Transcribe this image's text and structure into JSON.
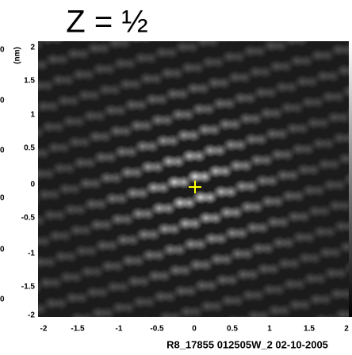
{
  "title": "Z = ½",
  "y_axis_label": "(nm)",
  "y_ticks": [
    "2",
    "1.5",
    "1",
    "0.5",
    "0",
    "-0.5",
    "-1",
    "-1.5",
    "-2"
  ],
  "x_ticks": [
    "-2",
    "-1.5",
    "-1",
    "-0.5",
    "0",
    "0.5",
    "1",
    "1.5",
    "2"
  ],
  "edge_labels": [
    "0",
    "0",
    "0",
    "0",
    "0",
    "0"
  ],
  "caption": "R8_17855 012505W_2  02-10-2005"
}
